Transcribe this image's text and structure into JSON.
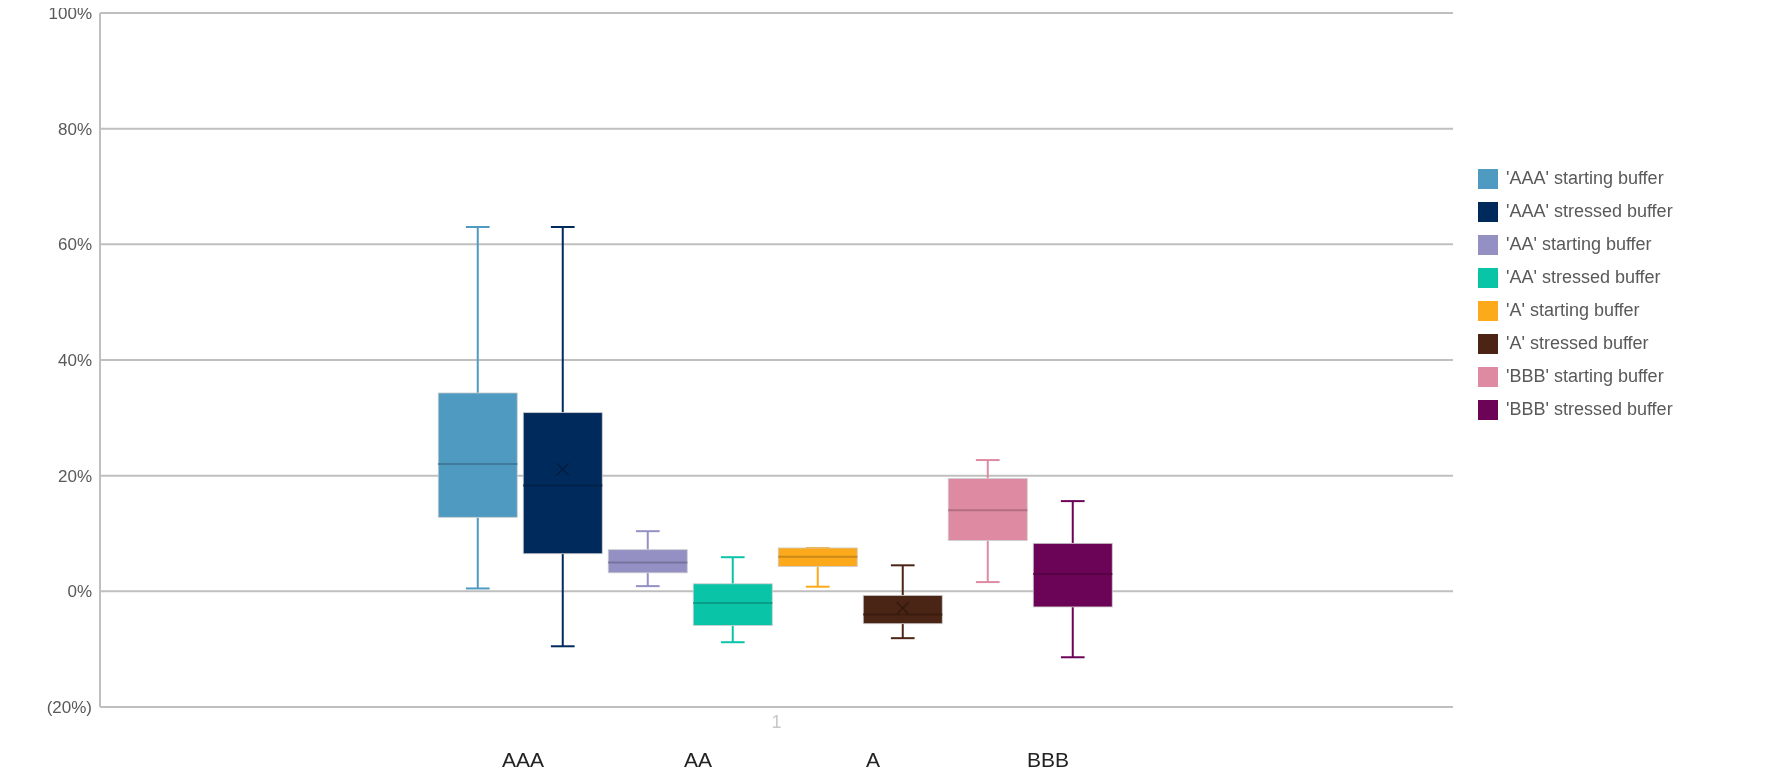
{
  "chart_data": {
    "type": "box",
    "categories": [
      "1"
    ],
    "ylim": [
      -20,
      100
    ],
    "yticks": [
      {
        "value": -20,
        "label": "(20%)"
      },
      {
        "value": 0,
        "label": "0%"
      },
      {
        "value": 20,
        "label": "20%"
      },
      {
        "value": 40,
        "label": "40%"
      },
      {
        "value": 60,
        "label": "60%"
      },
      {
        "value": 80,
        "label": "80%"
      },
      {
        "value": 100,
        "label": "100%"
      }
    ],
    "grid": "y",
    "legend": "right",
    "annotations": [
      "AAA",
      "AA",
      "A",
      "BBB"
    ],
    "series": [
      {
        "name": "'AAA' starting buffer",
        "color": "#4f9ac0",
        "boxes": [
          {
            "low": 0.5,
            "q1": 12.8,
            "median": 22,
            "q3": 34.3,
            "high": 63
          }
        ]
      },
      {
        "name": "'AAA' stressed buffer",
        "color": "#002a5c",
        "boxes": [
          {
            "low": -9.5,
            "q1": 6.5,
            "median": 18.3,
            "q3": 30.9,
            "high": 63,
            "mean": 21.1
          }
        ]
      },
      {
        "name": "'AA' starting buffer",
        "color": "#9490c4",
        "boxes": [
          {
            "low": 0.9,
            "q1": 3.2,
            "median": 5,
            "q3": 7.2,
            "high": 10.4
          }
        ]
      },
      {
        "name": "'AA' stressed buffer",
        "color": "#0ac4a8",
        "boxes": [
          {
            "low": -8.8,
            "q1": -5.9,
            "median": -2,
            "q3": 1.3,
            "high": 5.9
          }
        ]
      },
      {
        "name": "'A' starting buffer",
        "color": "#fcaa1c",
        "boxes": [
          {
            "low": 0.8,
            "q1": 4.3,
            "median": 6,
            "q3": 7.5,
            "high": 7.5
          }
        ]
      },
      {
        "name": "'A' stressed buffer",
        "color": "#4a2414",
        "boxes": [
          {
            "low": -8.1,
            "q1": -5.6,
            "median": -4,
            "q3": -0.7,
            "high": 4.5,
            "mean": -2.9
          }
        ]
      },
      {
        "name": "'BBB' starting buffer",
        "color": "#de8aa2",
        "boxes": [
          {
            "low": 1.6,
            "q1": 8.8,
            "median": 14,
            "q3": 19.5,
            "high": 22.7
          }
        ]
      },
      {
        "name": "'BBB' stressed buffer",
        "color": "#6b0356",
        "boxes": [
          {
            "low": -11.4,
            "q1": -2.7,
            "median": 3,
            "q3": 8.3,
            "high": 15.6
          }
        ]
      }
    ]
  }
}
